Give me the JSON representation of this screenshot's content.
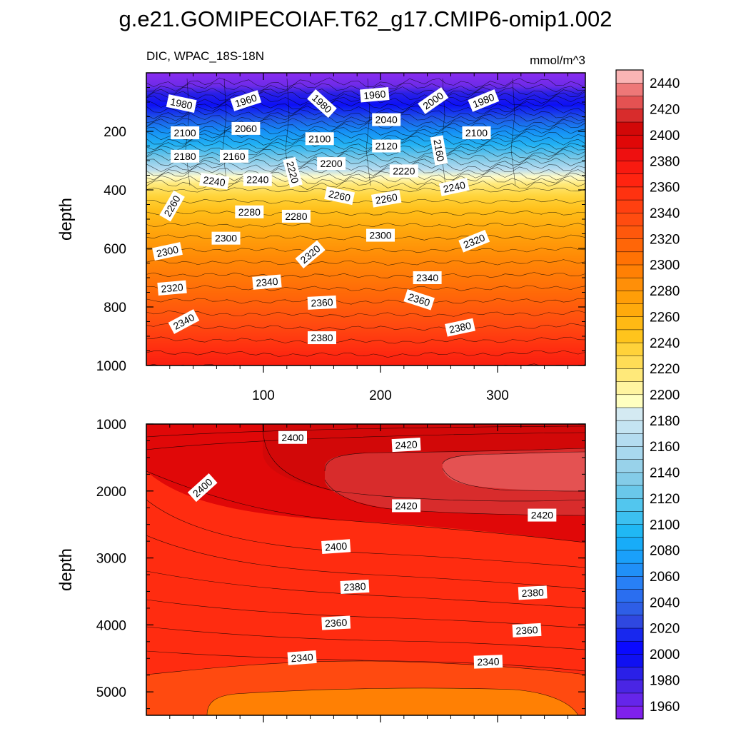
{
  "chart_data": [
    {
      "type": "contour",
      "title": "g.e21.GOMIPECOIAF.T62_g17.CMIP6-omip1.002",
      "left_label": "DIC, WPAC_18S-18N",
      "units_label": "mmol/m^3",
      "ylabel": "depth",
      "xlim": [
        0,
        375
      ],
      "ylim": [
        0,
        1000
      ],
      "xticks": [
        100,
        200,
        300
      ],
      "xtick_labels": [
        "100",
        "200",
        "300"
      ],
      "yticks": [
        200,
        400,
        600,
        800,
        1000
      ],
      "ytick_labels": [
        "200",
        "400",
        "600",
        "800",
        "1000"
      ],
      "contour_labels": [
        {
          "text": "1980",
          "x": 30,
          "y": 105,
          "rot": 12
        },
        {
          "text": "1960",
          "x": 85,
          "y": 95,
          "rot": -18
        },
        {
          "text": "1980",
          "x": 150,
          "y": 105,
          "rot": 42
        },
        {
          "text": "1960",
          "x": 195,
          "y": 75,
          "rot": -5
        },
        {
          "text": "2000",
          "x": 245,
          "y": 95,
          "rot": -35
        },
        {
          "text": "1980",
          "x": 288,
          "y": 95,
          "rot": -22
        },
        {
          "text": "2100",
          "x": 33,
          "y": 205,
          "rot": 0
        },
        {
          "text": "2060",
          "x": 85,
          "y": 190,
          "rot": 0
        },
        {
          "text": "2040",
          "x": 205,
          "y": 160,
          "rot": 0
        },
        {
          "text": "2100",
          "x": 148,
          "y": 225,
          "rot": 0
        },
        {
          "text": "2120",
          "x": 205,
          "y": 250,
          "rot": 0
        },
        {
          "text": "2160",
          "x": 250,
          "y": 265,
          "rot": 80
        },
        {
          "text": "2100",
          "x": 282,
          "y": 205,
          "rot": 0
        },
        {
          "text": "2180",
          "x": 33,
          "y": 285,
          "rot": 0
        },
        {
          "text": "2160",
          "x": 75,
          "y": 285,
          "rot": 0
        },
        {
          "text": "2200",
          "x": 158,
          "y": 310,
          "rot": 0
        },
        {
          "text": "2220",
          "x": 125,
          "y": 340,
          "rot": 75
        },
        {
          "text": "2220",
          "x": 220,
          "y": 335,
          "rot": 0
        },
        {
          "text": "2240",
          "x": 58,
          "y": 370,
          "rot": 8
        },
        {
          "text": "2240",
          "x": 95,
          "y": 365,
          "rot": 0
        },
        {
          "text": "2260",
          "x": 165,
          "y": 420,
          "rot": 12
        },
        {
          "text": "2260",
          "x": 205,
          "y": 430,
          "rot": -10
        },
        {
          "text": "2240",
          "x": 263,
          "y": 390,
          "rot": -12
        },
        {
          "text": "2260",
          "x": 22,
          "y": 455,
          "rot": -60
        },
        {
          "text": "2280",
          "x": 88,
          "y": 475,
          "rot": 0
        },
        {
          "text": "2280",
          "x": 128,
          "y": 490,
          "rot": 0
        },
        {
          "text": "2300",
          "x": 68,
          "y": 565,
          "rot": 0
        },
        {
          "text": "2300",
          "x": 200,
          "y": 555,
          "rot": 0
        },
        {
          "text": "2320",
          "x": 280,
          "y": 575,
          "rot": -22
        },
        {
          "text": "2300",
          "x": 18,
          "y": 610,
          "rot": -12
        },
        {
          "text": "2320",
          "x": 140,
          "y": 620,
          "rot": -40
        },
        {
          "text": "2340",
          "x": 103,
          "y": 715,
          "rot": -5
        },
        {
          "text": "2340",
          "x": 240,
          "y": 700,
          "rot": 0
        },
        {
          "text": "2320",
          "x": 22,
          "y": 735,
          "rot": -5
        },
        {
          "text": "2360",
          "x": 150,
          "y": 785,
          "rot": -3
        },
        {
          "text": "2360",
          "x": 233,
          "y": 775,
          "rot": 18
        },
        {
          "text": "2340",
          "x": 32,
          "y": 850,
          "rot": -28
        },
        {
          "text": "2380",
          "x": 150,
          "y": 905,
          "rot": 0
        },
        {
          "text": "2380",
          "x": 268,
          "y": 870,
          "rot": -12
        }
      ]
    },
    {
      "type": "contour",
      "ylabel": "depth",
      "xlim": [
        0,
        375
      ],
      "ylim": [
        1000,
        5350
      ],
      "xticks": [
        100,
        200,
        300
      ],
      "xtick_labels": [
        "",
        "",
        ""
      ],
      "yticks": [
        1000,
        2000,
        3000,
        4000,
        5000
      ],
      "ytick_labels": [
        "1000",
        "2000",
        "3000",
        "4000",
        "5000"
      ],
      "contour_labels": [
        {
          "text": "2400",
          "x": 125,
          "y": 1200,
          "rot": 0
        },
        {
          "text": "2420",
          "x": 222,
          "y": 1310,
          "rot": -3
        },
        {
          "text": "2400",
          "x": 48,
          "y": 1950,
          "rot": -42
        },
        {
          "text": "2420",
          "x": 222,
          "y": 2220,
          "rot": 0
        },
        {
          "text": "2420",
          "x": 338,
          "y": 2360,
          "rot": 0
        },
        {
          "text": "2400",
          "x": 162,
          "y": 2830,
          "rot": -4
        },
        {
          "text": "2380",
          "x": 178,
          "y": 3430,
          "rot": -3
        },
        {
          "text": "2380",
          "x": 330,
          "y": 3520,
          "rot": -3
        },
        {
          "text": "2360",
          "x": 162,
          "y": 3970,
          "rot": -3
        },
        {
          "text": "2360",
          "x": 325,
          "y": 4080,
          "rot": -3
        },
        {
          "text": "2340",
          "x": 133,
          "y": 4490,
          "rot": -4
        },
        {
          "text": "2340",
          "x": 292,
          "y": 4550,
          "rot": -2
        }
      ]
    }
  ],
  "colorbar": {
    "levels": [
      1960,
      1970,
      1980,
      1990,
      2000,
      2010,
      2020,
      2030,
      2040,
      2050,
      2060,
      2070,
      2080,
      2090,
      2100,
      2110,
      2120,
      2130,
      2140,
      2150,
      2160,
      2170,
      2180,
      2190,
      2200,
      2210,
      2220,
      2230,
      2240,
      2250,
      2260,
      2270,
      2280,
      2290,
      2300,
      2310,
      2320,
      2330,
      2340,
      2350,
      2360,
      2370,
      2380,
      2390,
      2400,
      2410,
      2420,
      2430,
      2440,
      2450
    ],
    "labels": [
      "1960",
      "1980",
      "2000",
      "2020",
      "2040",
      "2060",
      "2080",
      "2100",
      "2120",
      "2140",
      "2160",
      "2180",
      "2200",
      "2220",
      "2240",
      "2260",
      "2280",
      "2300",
      "2320",
      "2340",
      "2360",
      "2380",
      "2400",
      "2420",
      "2440"
    ],
    "colors": [
      "#7f20ec",
      "#6525ea",
      "#4a25e4",
      "#2a20e8",
      "#1010f2",
      "#0a0aff",
      "#1828ee",
      "#2f48e0",
      "#2e5ee6",
      "#2a6ef0",
      "#2880f5",
      "#2090f8",
      "#1aa0fa",
      "#18acf8",
      "#20b8f4",
      "#3cc0f0",
      "#52c6ee",
      "#6ac8ea",
      "#84cce8",
      "#98d2ea",
      "#a8d8ee",
      "#b4dcf0",
      "#c4e4f2",
      "#d4eaf2",
      "#ffffc0",
      "#fff4a0",
      "#ffe97a",
      "#ffdc56",
      "#ffd23a",
      "#ffc41c",
      "#ffb914",
      "#ffaa0c",
      "#ff9e08",
      "#ff8f08",
      "#ff8004",
      "#ff7204",
      "#ff6608",
      "#ff580c",
      "#ff4c10",
      "#ff4010",
      "#ff3210",
      "#ff2410",
      "#f81a10",
      "#ee1010",
      "#e00808",
      "#d20808",
      "#d82c2c",
      "#e45252",
      "#ee7878",
      "#fab4b4"
    ]
  }
}
